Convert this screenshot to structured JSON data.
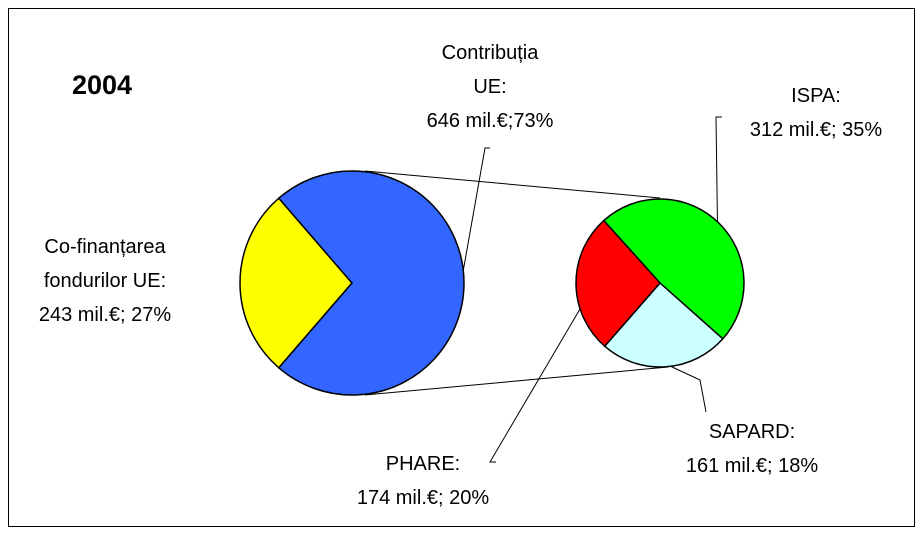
{
  "chart_data": {
    "type": "pie-of-pie",
    "title": "2004",
    "categories": [
      "Co-finanțarea fondurilor UE:",
      "Contribuția UE:"
    ],
    "values": [
      243,
      646
    ],
    "value_labels": [
      "243 mil.€; 27%",
      "646 mil.€;73%"
    ],
    "colors": [
      "#ffff00",
      "#3366ff"
    ],
    "secondary": {
      "categories": [
        "ISPA:",
        "SAPARD:",
        "PHARE:"
      ],
      "values": [
        312,
        161,
        174
      ],
      "value_labels": [
        "312 mil.€; 35%",
        "161 mil.€; 18%",
        "174 mil.€; 20%"
      ],
      "colors": [
        "#00ff00",
        "#ccffff",
        "#ff0000"
      ]
    }
  }
}
